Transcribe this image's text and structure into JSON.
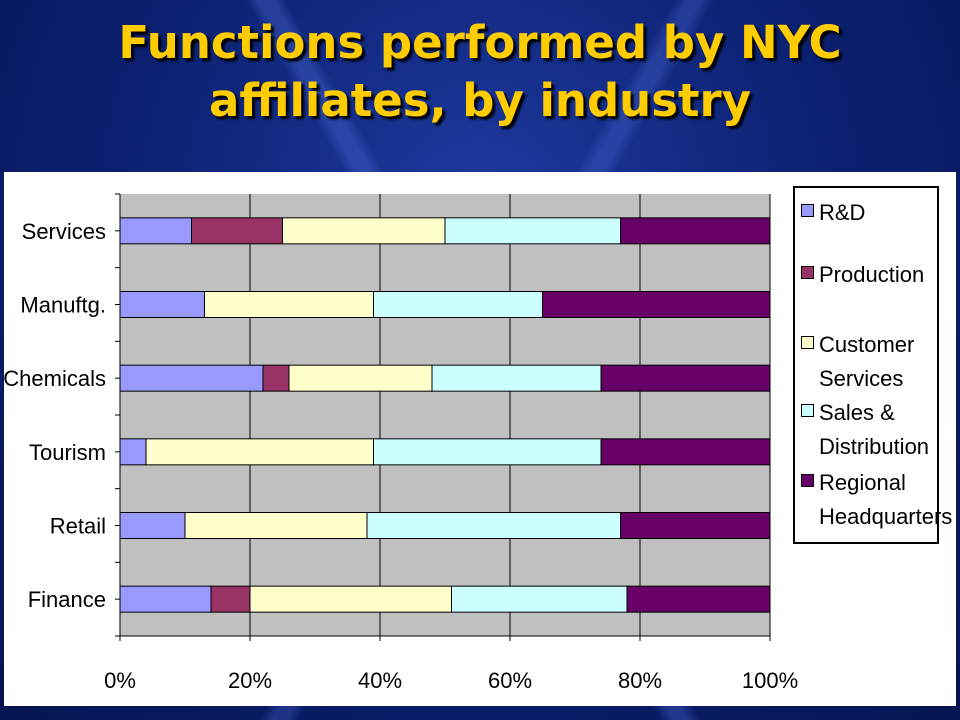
{
  "title_line1": "Functions performed by NYC",
  "title_line2": "affiliates, by industry",
  "chart_data": {
    "type": "bar",
    "orientation": "horizontal",
    "stacked": "percent",
    "categories": [
      "Services",
      "Manuftg.",
      "Chemicals",
      "Tourism",
      "Retail",
      "Finance"
    ],
    "series": [
      {
        "name": "R&D",
        "color": "#9999ff",
        "values": [
          11,
          13,
          22,
          4,
          10,
          14
        ]
      },
      {
        "name": "Production",
        "color": "#993366",
        "values": [
          14,
          0,
          4,
          0,
          0,
          6
        ]
      },
      {
        "name": "Customer Services",
        "color": "#ffffcc",
        "values": [
          25,
          26,
          22,
          35,
          28,
          31
        ]
      },
      {
        "name": "Sales & Distribution",
        "color": "#ccffff",
        "values": [
          27,
          26,
          26,
          35,
          39,
          27
        ]
      },
      {
        "name": "Regional Headquarters",
        "color": "#660066",
        "values": [
          23,
          35,
          26,
          26,
          23,
          22
        ]
      }
    ],
    "xlim": [
      0,
      100
    ],
    "x_ticks": [
      "0%",
      "20%",
      "40%",
      "60%",
      "80%",
      "100%"
    ],
    "grid": true,
    "plot_background": "#c0c0c0",
    "legend_position": "right"
  },
  "legend": {
    "items": [
      {
        "lines": [
          "R&D"
        ],
        "color": "#9999ff"
      },
      {
        "lines": [
          "Production"
        ],
        "color": "#993366"
      },
      {
        "lines": [
          "Customer",
          "Services"
        ],
        "color": "#ffffcc"
      },
      {
        "lines": [
          "Sales &",
          "Distribution"
        ],
        "color": "#ccffff"
      },
      {
        "lines": [
          "Regional",
          "Headquarters"
        ],
        "color": "#660066"
      }
    ]
  }
}
